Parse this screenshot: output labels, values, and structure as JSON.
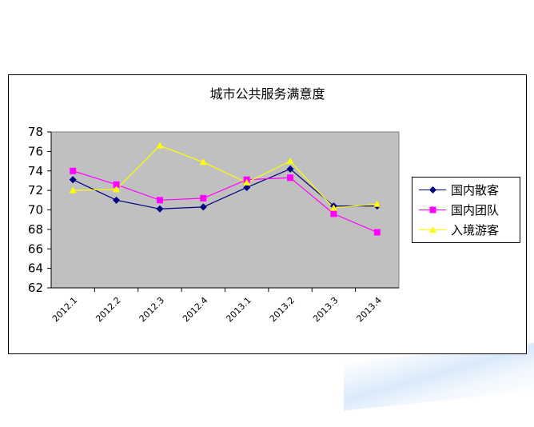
{
  "chart_data": {
    "type": "line",
    "title": "城市公共服务满意度",
    "categories": [
      "2012.1",
      "2012.2",
      "2012.3",
      "2012.4",
      "2013.1",
      "2013.2",
      "2013.3",
      "2013.4"
    ],
    "ylim": [
      62,
      78
    ],
    "yticks": [
      62,
      64,
      66,
      68,
      70,
      72,
      74,
      76,
      78
    ],
    "grid": false,
    "legend_position": "right",
    "series": [
      {
        "name": "国内散客",
        "color": "#000080",
        "marker": "diamond",
        "values": [
          73.1,
          71.0,
          70.1,
          70.3,
          72.3,
          74.2,
          70.4,
          70.4
        ]
      },
      {
        "name": "国内团队",
        "color": "#FF00FF",
        "marker": "square",
        "values": [
          74.0,
          72.6,
          71.0,
          71.2,
          73.1,
          73.3,
          69.6,
          67.7
        ]
      },
      {
        "name": "入境游客",
        "color": "#FFFF00",
        "marker": "triangle",
        "values": [
          72.0,
          72.1,
          76.6,
          74.9,
          72.8,
          75.0,
          70.2,
          70.6
        ]
      }
    ]
  }
}
